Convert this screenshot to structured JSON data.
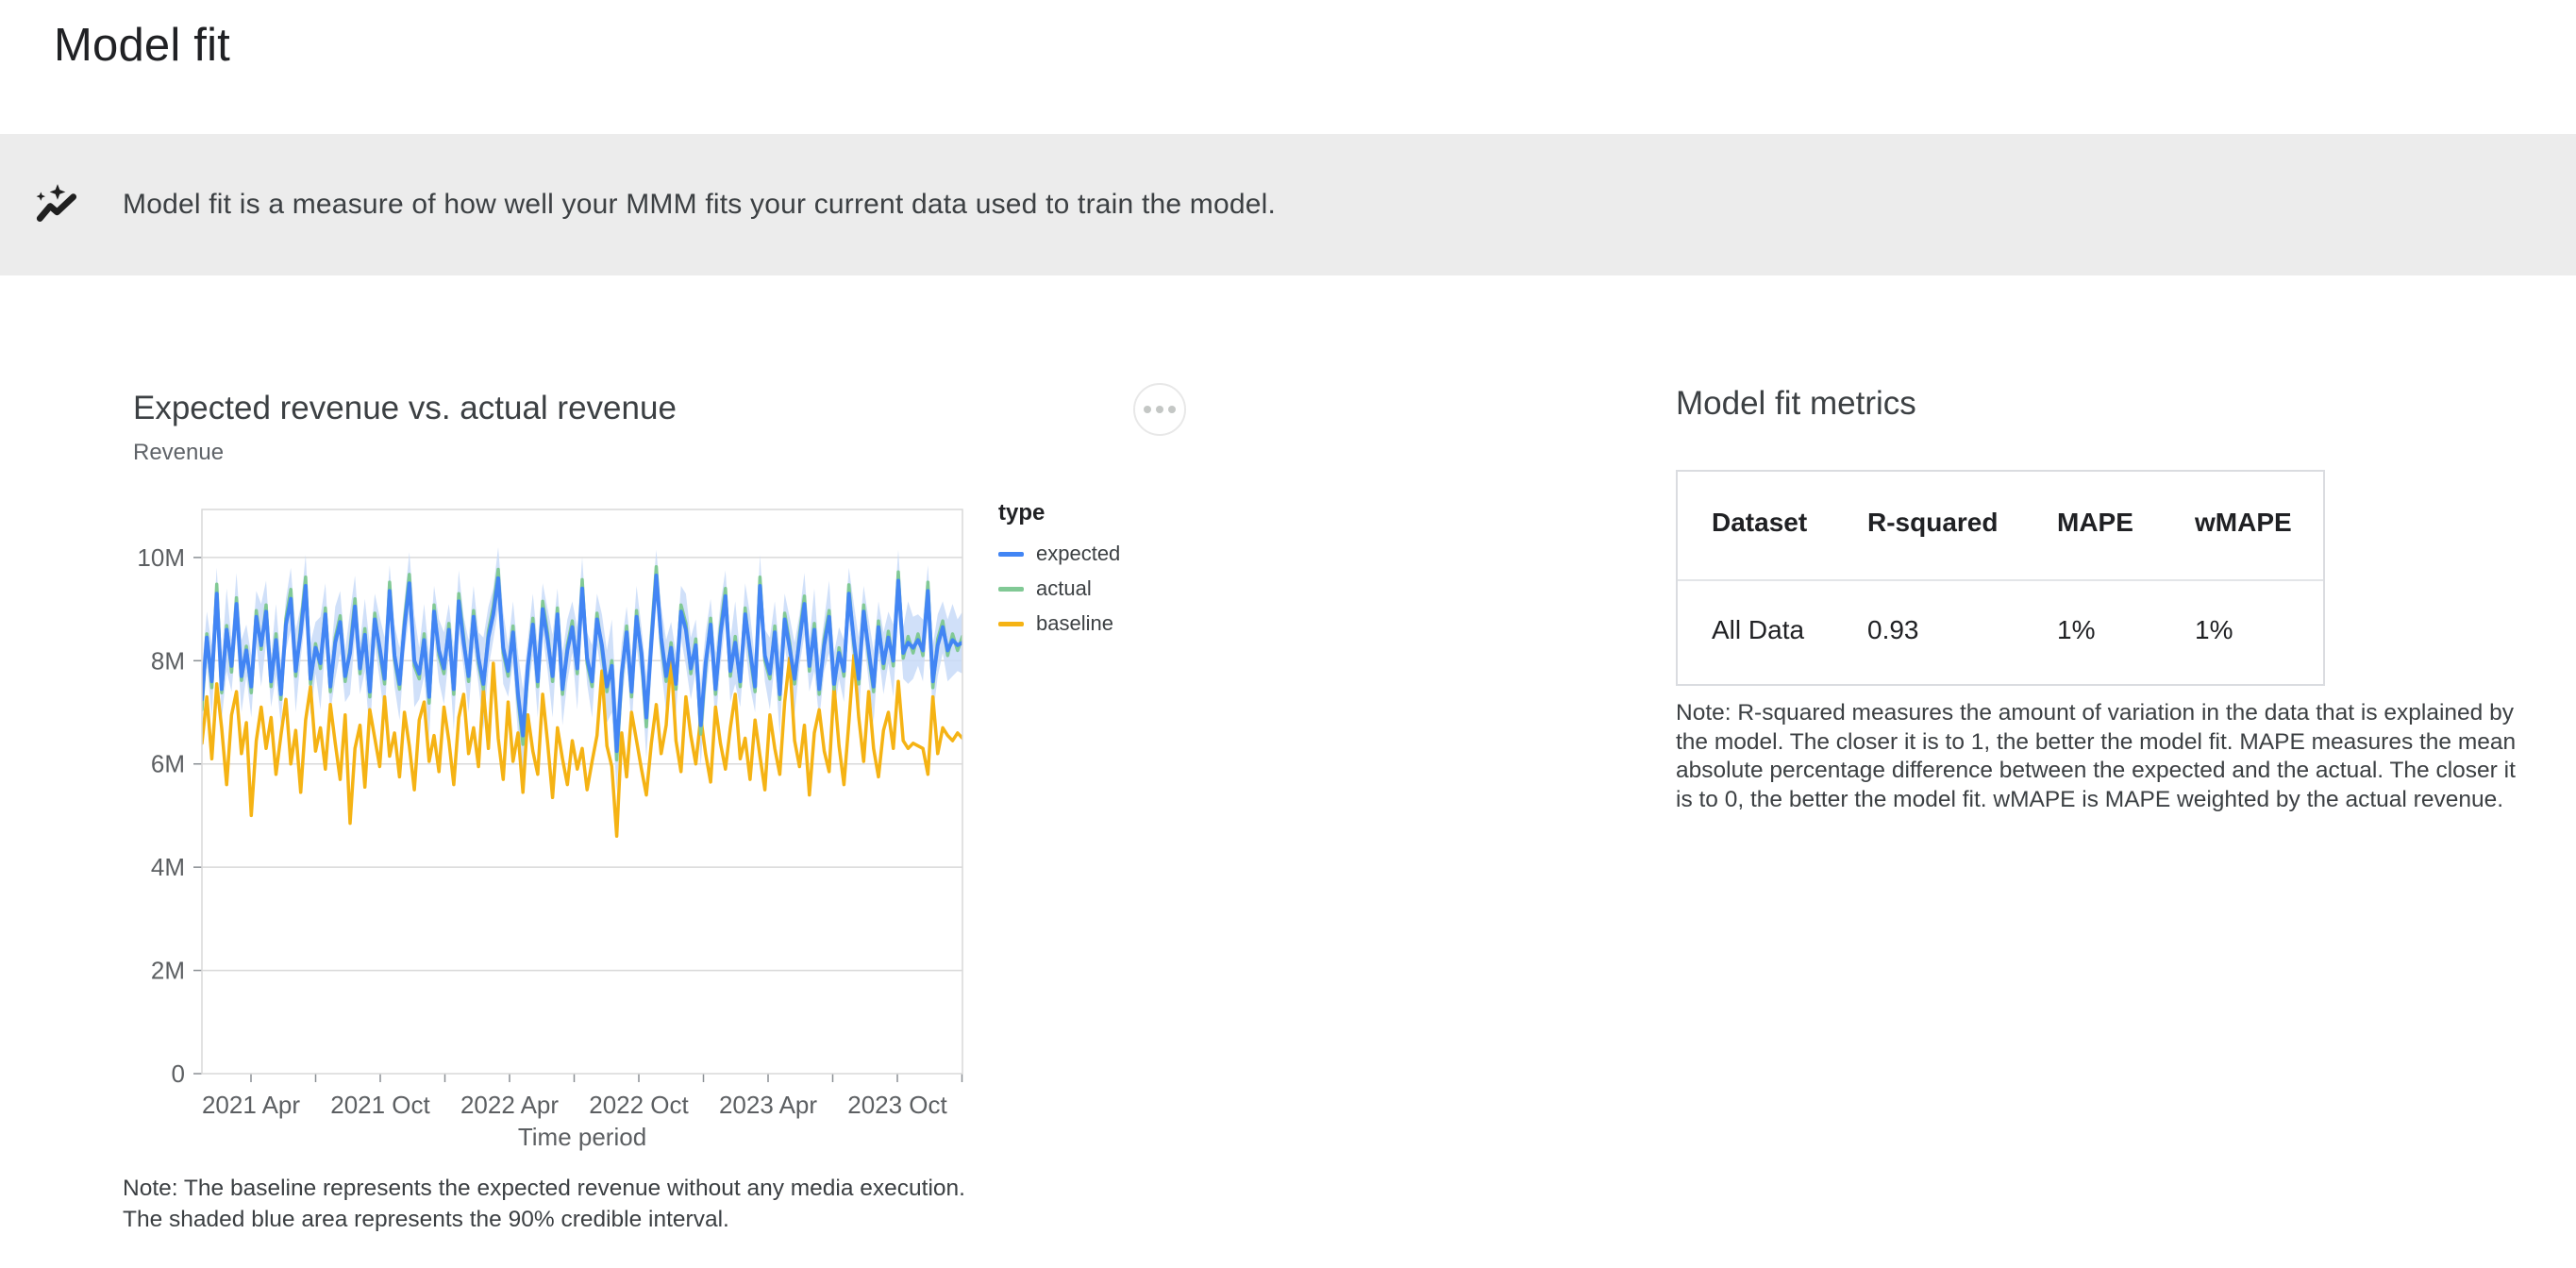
{
  "page": {
    "title": "Model fit"
  },
  "banner": {
    "icon": "model-fit-trend-sparkle-icon",
    "text": "Model fit is a measure of how well your MMM fits your current data used to train the model."
  },
  "chart_section": {
    "title": "Expected revenue vs. actual revenue",
    "subtitle": "Revenue",
    "menu_icon": "more-options-ellipsis-icon",
    "note_lines": [
      "Note: The baseline represents the expected revenue without any media execution.",
      "The shaded blue area represents the 90% credible interval."
    ]
  },
  "chart_data": {
    "type": "line",
    "title": "Expected revenue vs. actual revenue",
    "xlabel": "Time period",
    "ylabel": "Revenue",
    "y_unit": "millions",
    "ylim": [
      0,
      10.93
    ],
    "y_tick_values": [
      0,
      2,
      4,
      6,
      8,
      10
    ],
    "y_ticks": [
      "0",
      "2M",
      "4M",
      "6M",
      "8M",
      "10M"
    ],
    "x_tick_labels": [
      "2021 Apr",
      "2021 Oct",
      "2022 Apr",
      "2022 Oct",
      "2023 Apr",
      "2023 Oct"
    ],
    "x_start": "2021-01-15",
    "x_end": "2024-01-05",
    "cadence": "weekly",
    "grid": true,
    "legend_title": "type",
    "legend_position": "right",
    "series": [
      {
        "name": "expected",
        "color": "#4285F4",
        "values": [
          7.25,
          8.45,
          7.6,
          9.3,
          7.45,
          8.6,
          7.9,
          9.1,
          7.7,
          8.2,
          7.5,
          8.85,
          8.3,
          8.95,
          7.6,
          8.4,
          7.35,
          8.7,
          9.2,
          7.8,
          8.55,
          9.45,
          7.65,
          8.25,
          7.95,
          8.9,
          7.5,
          8.35,
          8.75,
          7.7,
          8.15,
          9.05,
          7.85,
          8.5,
          7.4,
          8.8,
          8.25,
          7.65,
          9.35,
          8.1,
          7.55,
          8.65,
          9.5,
          8.0,
          7.75,
          8.4,
          7.3,
          8.95,
          8.2,
          7.85,
          8.6,
          7.45,
          9.15,
          8.35,
          7.7,
          8.85,
          8.05,
          7.55,
          8.45,
          8.9,
          9.6,
          8.25,
          7.8,
          8.55,
          7.35,
          6.55,
          7.9,
          8.7,
          7.6,
          9.0,
          8.4,
          7.7,
          8.9,
          7.45,
          8.2,
          8.65,
          7.85,
          9.4,
          8.05,
          7.6,
          8.8,
          8.3,
          7.5,
          7.9,
          6.25,
          7.75,
          8.55,
          7.4,
          8.85,
          8.15,
          6.9,
          8.35,
          9.65,
          8.45,
          7.7,
          8.25,
          7.55,
          8.95,
          8.6,
          7.85,
          8.3,
          6.75,
          7.95,
          8.7,
          7.45,
          8.5,
          9.25,
          7.8,
          8.35,
          7.6,
          8.9,
          8.2,
          7.5,
          9.45,
          8.1,
          7.75,
          8.55,
          7.35,
          8.8,
          8.25,
          7.65,
          8.4,
          9.1,
          7.9,
          8.6,
          7.45,
          8.3,
          8.85,
          7.55,
          8.15,
          7.8,
          9.3,
          8.4,
          7.65,
          8.95,
          8.2,
          7.5,
          8.65,
          7.95,
          8.45,
          8.0,
          9.55,
          8.15,
          8.35,
          8.25,
          8.4,
          8.2,
          9.35,
          7.6,
          8.3,
          8.65,
          8.2,
          8.4,
          8.3,
          8.35
        ]
      },
      {
        "name": "actual",
        "color": "#81C995",
        "values": [
          7.05,
          8.52,
          7.48,
          9.48,
          7.38,
          8.68,
          7.78,
          9.22,
          7.62,
          8.28,
          7.38,
          8.97,
          8.22,
          9.08,
          7.5,
          8.52,
          7.25,
          8.82,
          9.38,
          7.7,
          8.67,
          9.62,
          7.55,
          8.33,
          7.85,
          9.02,
          7.4,
          8.45,
          8.87,
          7.6,
          8.25,
          9.2,
          7.75,
          8.62,
          7.3,
          8.92,
          8.15,
          7.55,
          9.52,
          8.02,
          7.45,
          8.77,
          9.67,
          7.9,
          7.65,
          8.52,
          7.18,
          9.08,
          8.1,
          7.75,
          8.72,
          7.35,
          9.3,
          8.45,
          7.6,
          8.97,
          7.95,
          7.45,
          8.57,
          9.05,
          9.77,
          8.15,
          7.7,
          8.67,
          7.25,
          6.38,
          7.8,
          8.82,
          7.5,
          9.15,
          8.52,
          7.6,
          9.02,
          7.35,
          8.3,
          8.77,
          7.75,
          9.57,
          7.95,
          7.5,
          8.92,
          8.2,
          7.4,
          8.0,
          6.08,
          7.65,
          8.67,
          7.3,
          8.97,
          8.05,
          6.72,
          8.47,
          9.82,
          8.35,
          7.6,
          8.35,
          7.45,
          9.08,
          8.72,
          7.75,
          8.42,
          6.58,
          7.85,
          8.82,
          7.35,
          8.62,
          9.4,
          7.7,
          8.47,
          7.5,
          9.02,
          8.1,
          7.4,
          9.62,
          8.0,
          7.65,
          8.67,
          7.25,
          8.92,
          8.35,
          7.55,
          8.52,
          9.25,
          7.8,
          8.72,
          7.35,
          8.42,
          8.97,
          7.45,
          8.25,
          7.7,
          9.47,
          8.3,
          7.55,
          9.08,
          8.1,
          7.4,
          8.77,
          7.85,
          8.57,
          7.9,
          9.72,
          8.05,
          8.47,
          8.15,
          8.52,
          8.1,
          9.52,
          7.48,
          8.42,
          8.77,
          8.1,
          8.52,
          8.2,
          8.47
        ]
      },
      {
        "name": "baseline",
        "color": "#F5B314",
        "values": [
          6.4,
          7.3,
          6.1,
          7.55,
          6.7,
          5.6,
          6.95,
          7.4,
          6.2,
          6.8,
          5.0,
          6.45,
          7.1,
          6.3,
          6.9,
          5.8,
          6.55,
          7.25,
          6.0,
          6.65,
          5.45,
          6.85,
          7.5,
          6.25,
          6.7,
          5.9,
          7.15,
          6.4,
          5.7,
          6.95,
          4.85,
          6.3,
          6.75,
          5.55,
          7.05,
          6.5,
          5.95,
          7.3,
          6.15,
          6.6,
          5.75,
          7.0,
          6.35,
          5.5,
          6.85,
          7.2,
          6.05,
          6.55,
          5.85,
          7.1,
          6.45,
          5.6,
          6.9,
          7.35,
          6.2,
          6.7,
          5.95,
          7.45,
          6.3,
          7.95,
          6.5,
          5.7,
          7.2,
          6.05,
          6.6,
          5.45,
          6.95,
          6.25,
          5.8,
          7.35,
          6.4,
          5.35,
          6.7,
          6.1,
          5.6,
          6.45,
          5.9,
          6.3,
          5.5,
          6.05,
          6.55,
          7.8,
          6.35,
          5.95,
          4.6,
          6.6,
          5.75,
          7.0,
          6.45,
          5.9,
          5.4,
          6.4,
          7.15,
          6.2,
          6.75,
          8.05,
          6.45,
          5.85,
          7.3,
          6.55,
          6.0,
          6.9,
          6.2,
          5.65,
          7.1,
          6.4,
          5.9,
          6.7,
          7.35,
          6.1,
          6.5,
          5.7,
          6.85,
          6.15,
          5.5,
          6.95,
          6.3,
          5.8,
          7.2,
          8.05,
          6.45,
          5.95,
          6.75,
          5.4,
          6.6,
          7.05,
          6.25,
          5.85,
          7.5,
          6.35,
          5.6,
          6.8,
          8.1,
          6.9,
          6.05,
          7.4,
          6.3,
          5.75,
          6.65,
          7.0,
          6.3,
          7.6,
          6.45,
          6.3,
          6.4,
          6.35,
          6.3,
          5.8,
          7.3,
          6.2,
          6.7,
          6.55,
          6.45,
          6.6,
          6.5
        ]
      }
    ],
    "credible_interval": {
      "label": "90% credible interval",
      "applies_to": "expected",
      "color": "#C8DAF8",
      "halfwidth": [
        0.6,
        0.5,
        0.7,
        0.5,
        0.6,
        0.8,
        0.5,
        0.6,
        0.7,
        0.5,
        0.6,
        0.5,
        0.8,
        0.6,
        0.5,
        0.7,
        0.6,
        0.5,
        0.6,
        0.8,
        0.5,
        0.6,
        0.7,
        0.5,
        0.9,
        0.6,
        0.5,
        0.7,
        0.6,
        0.5,
        0.8,
        0.6,
        0.5,
        0.7,
        0.9,
        0.5,
        0.6,
        0.8,
        0.5,
        0.6,
        0.7,
        0.5,
        0.6,
        0.9,
        0.5,
        0.7,
        0.8,
        0.5,
        0.6,
        0.7,
        0.5,
        0.8,
        0.6,
        0.5,
        0.7,
        0.6,
        0.5,
        0.9,
        0.6,
        0.5,
        0.6,
        0.7,
        0.5,
        0.6,
        0.8,
        0.9,
        0.5,
        0.6,
        0.7,
        0.5,
        0.6,
        0.8,
        0.5,
        0.7,
        0.6,
        0.5,
        0.8,
        0.6,
        0.5,
        0.7,
        0.5,
        0.6,
        0.7,
        0.9,
        0.8,
        0.6,
        0.5,
        0.7,
        0.6,
        0.5,
        0.8,
        0.6,
        0.5,
        0.6,
        0.7,
        0.5,
        0.6,
        0.5,
        0.7,
        0.6,
        0.5,
        0.8,
        0.6,
        0.5,
        0.7,
        0.6,
        0.5,
        0.6,
        0.8,
        0.5,
        0.6,
        0.7,
        0.5,
        0.6,
        0.5,
        0.7,
        0.6,
        0.8,
        0.5,
        0.6,
        0.7,
        0.5,
        0.6,
        0.5,
        0.8,
        0.6,
        0.5,
        0.7,
        0.6,
        0.5,
        0.6,
        0.5,
        0.7,
        0.8,
        0.5,
        0.6,
        0.7,
        0.5,
        0.6,
        0.5,
        0.7,
        0.6,
        0.5,
        0.8,
        0.6,
        0.5,
        0.6,
        0.5,
        0.7,
        0.6,
        0.5,
        0.6,
        0.7,
        0.5,
        0.6
      ]
    }
  },
  "metrics_section": {
    "title": "Model fit metrics",
    "table": {
      "headers": [
        "Dataset",
        "R-squared",
        "MAPE",
        "wMAPE"
      ],
      "rows": [
        [
          "All Data",
          "0.93",
          "1%",
          "1%"
        ]
      ]
    },
    "note": "Note: R-squared measures the amount of variation in the data that is explained by the model. The closer it is to 1, the better the model fit. MAPE measures the mean absolute percentage difference between the expected and the actual. The closer it is to 0, the better the model fit. wMAPE is MAPE weighted by the actual revenue."
  },
  "colors": {
    "banner_bg": "#ececec",
    "text_dark": "#202124",
    "text_body": "#3c4043",
    "text_muted": "#5f6368",
    "axis_label": "#5c5f62",
    "grid": "#d9d9d9",
    "tick": "#8a8f94",
    "table_border": "#dadce0",
    "expected_line": "#4285F4",
    "actual_line": "#81C995",
    "baseline_line": "#F5B314",
    "ci_band": "#C8DAF8"
  }
}
